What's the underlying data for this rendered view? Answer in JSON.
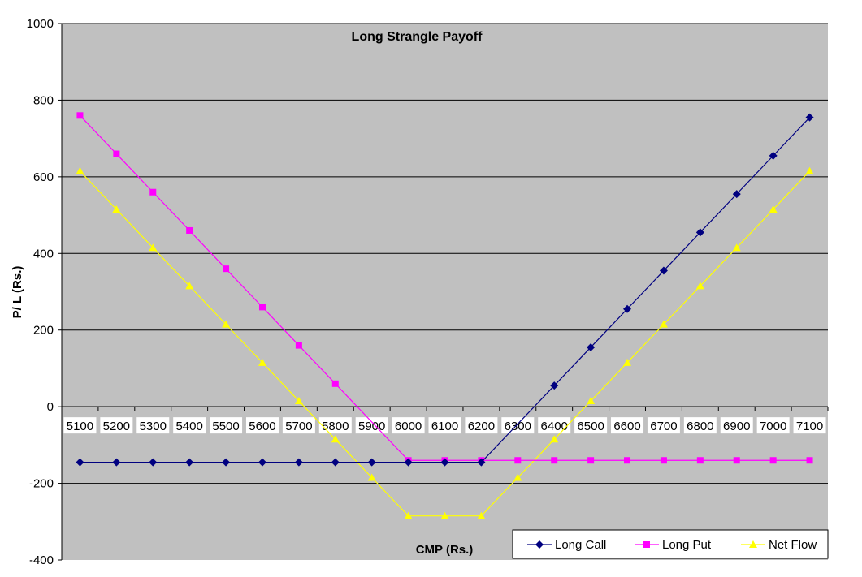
{
  "chart_data": {
    "type": "line",
    "title": "Long Strangle Payoff",
    "xlabel": "CMP (Rs.)",
    "ylabel": "P/ L (Rs.)",
    "ylim": [
      -400,
      1000
    ],
    "yticks": [
      -400,
      -200,
      0,
      200,
      400,
      600,
      800,
      1000
    ],
    "grid": true,
    "legend_position": "bottom-right",
    "x": [
      5100,
      5200,
      5300,
      5400,
      5500,
      5600,
      5700,
      5800,
      5900,
      6000,
      6100,
      6200,
      6300,
      6400,
      6500,
      6600,
      6700,
      6800,
      6900,
      7000,
      7100
    ],
    "series": [
      {
        "name": "Long Call",
        "color": "#000080",
        "marker": "diamond",
        "values": [
          -145,
          -145,
          -145,
          -145,
          -145,
          -145,
          -145,
          -145,
          -145,
          -145,
          -145,
          -145,
          null,
          55,
          155,
          255,
          355,
          455,
          555,
          655,
          755
        ]
      },
      {
        "name": "Long Put",
        "color": "#ff00ff",
        "marker": "square",
        "values": [
          760,
          660,
          560,
          460,
          360,
          260,
          160,
          60,
          null,
          -140,
          -140,
          -140,
          -140,
          -140,
          -140,
          -140,
          -140,
          -140,
          -140,
          -140,
          -140
        ]
      },
      {
        "name": "Net Flow",
        "color": "#ffff00",
        "marker": "triangle",
        "values": [
          615,
          515,
          415,
          315,
          215,
          115,
          15,
          -85,
          -185,
          -285,
          -285,
          -285,
          -185,
          -85,
          15,
          115,
          215,
          315,
          415,
          515,
          615
        ]
      }
    ]
  }
}
